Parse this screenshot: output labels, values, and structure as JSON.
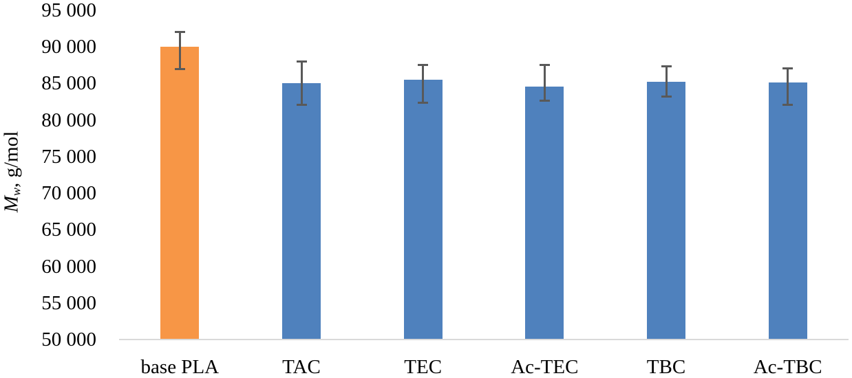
{
  "chart_data": {
    "type": "bar",
    "title": "",
    "xlabel": "",
    "ylabel": "Mw, g/mol",
    "ylabel_parts": {
      "symbol": "M",
      "subscript": "w",
      "rest": ", g/mol"
    },
    "ylim": [
      50000,
      95000
    ],
    "yticks": [
      50000,
      55000,
      60000,
      65000,
      70000,
      75000,
      80000,
      85000,
      90000,
      95000
    ],
    "ytick_labels": [
      "50 000",
      "55 000",
      "60 000",
      "65 000",
      "70 000",
      "75 000",
      "80 000",
      "85 000",
      "90 000",
      "95 000"
    ],
    "grid": false,
    "legend": null,
    "categories": [
      "base PLA",
      "TAC",
      "TEC",
      "Ac-TEC",
      "TBC",
      "Ac-TBC"
    ],
    "values": [
      90000,
      85000,
      85500,
      84600,
      85200,
      85100
    ],
    "error_high": [
      92000,
      88000,
      87500,
      87500,
      87300,
      87100
    ],
    "error_low": [
      87000,
      82100,
      82400,
      82600,
      83200,
      82100
    ],
    "bar_colors": [
      "#F79646",
      "#4F81BD",
      "#4F81BD",
      "#4F81BD",
      "#4F81BD",
      "#4F81BD"
    ],
    "error_bar_color": "#595959",
    "axis_color": "#D9D9D9"
  }
}
